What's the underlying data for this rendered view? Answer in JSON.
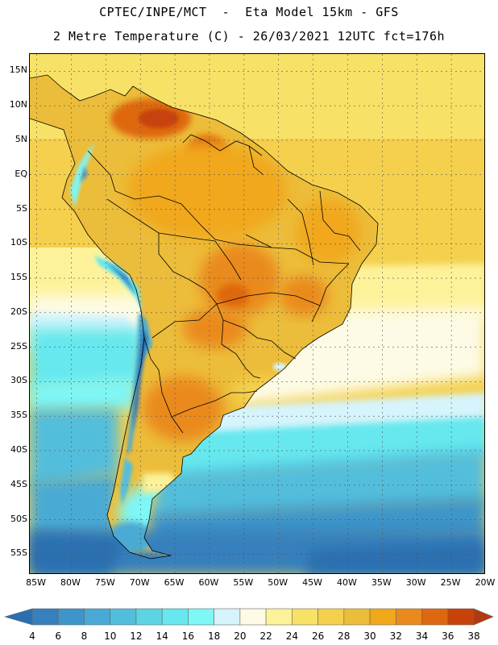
{
  "header": {
    "line1": "CPTEC/INPE/MCT  -  Eta Model 15km - GFS",
    "line2": "2 Metre Temperature (C) - 26/03/2021 12UTC fct=176h"
  },
  "map": {
    "region": "South America",
    "lat_labels": [
      "15N",
      "10N",
      "5N",
      "EQ",
      "5S",
      "10S",
      "15S",
      "20S",
      "25S",
      "30S",
      "35S",
      "40S",
      "45S",
      "50S",
      "55S"
    ],
    "lat_values": [
      15,
      10,
      5,
      0,
      -5,
      -10,
      -15,
      -20,
      -25,
      -30,
      -35,
      -40,
      -45,
      -50,
      -55
    ],
    "lon_labels": [
      "85W",
      "80W",
      "75W",
      "70W",
      "65W",
      "60W",
      "55W",
      "50W",
      "45W",
      "40W",
      "35W",
      "30W",
      "25W",
      "20W"
    ],
    "lon_values": [
      -85,
      -80,
      -75,
      -70,
      -65,
      -60,
      -55,
      -50,
      -45,
      -40,
      -35,
      -30,
      -25,
      -20
    ],
    "lat_range": [
      -58,
      17.5
    ],
    "lon_range": [
      -86,
      -20
    ]
  },
  "colorbar": {
    "labels": [
      "4",
      "6",
      "8",
      "10",
      "12",
      "14",
      "16",
      "18",
      "20",
      "22",
      "24",
      "26",
      "28",
      "30",
      "32",
      "34",
      "36",
      "38"
    ],
    "colors": [
      "#2a6fb0",
      "#3580bd",
      "#3e95c9",
      "#48aad4",
      "#52bedc",
      "#5cd4e4",
      "#66e8ee",
      "#7ef7f7",
      "#d6f4fb",
      "#fdfbe5",
      "#fdf29a",
      "#f8e167",
      "#f4d04d",
      "#ecbd3a",
      "#f1a81a",
      "#ea8a1e",
      "#de6811",
      "#c84209",
      "#b13a10"
    ]
  }
}
